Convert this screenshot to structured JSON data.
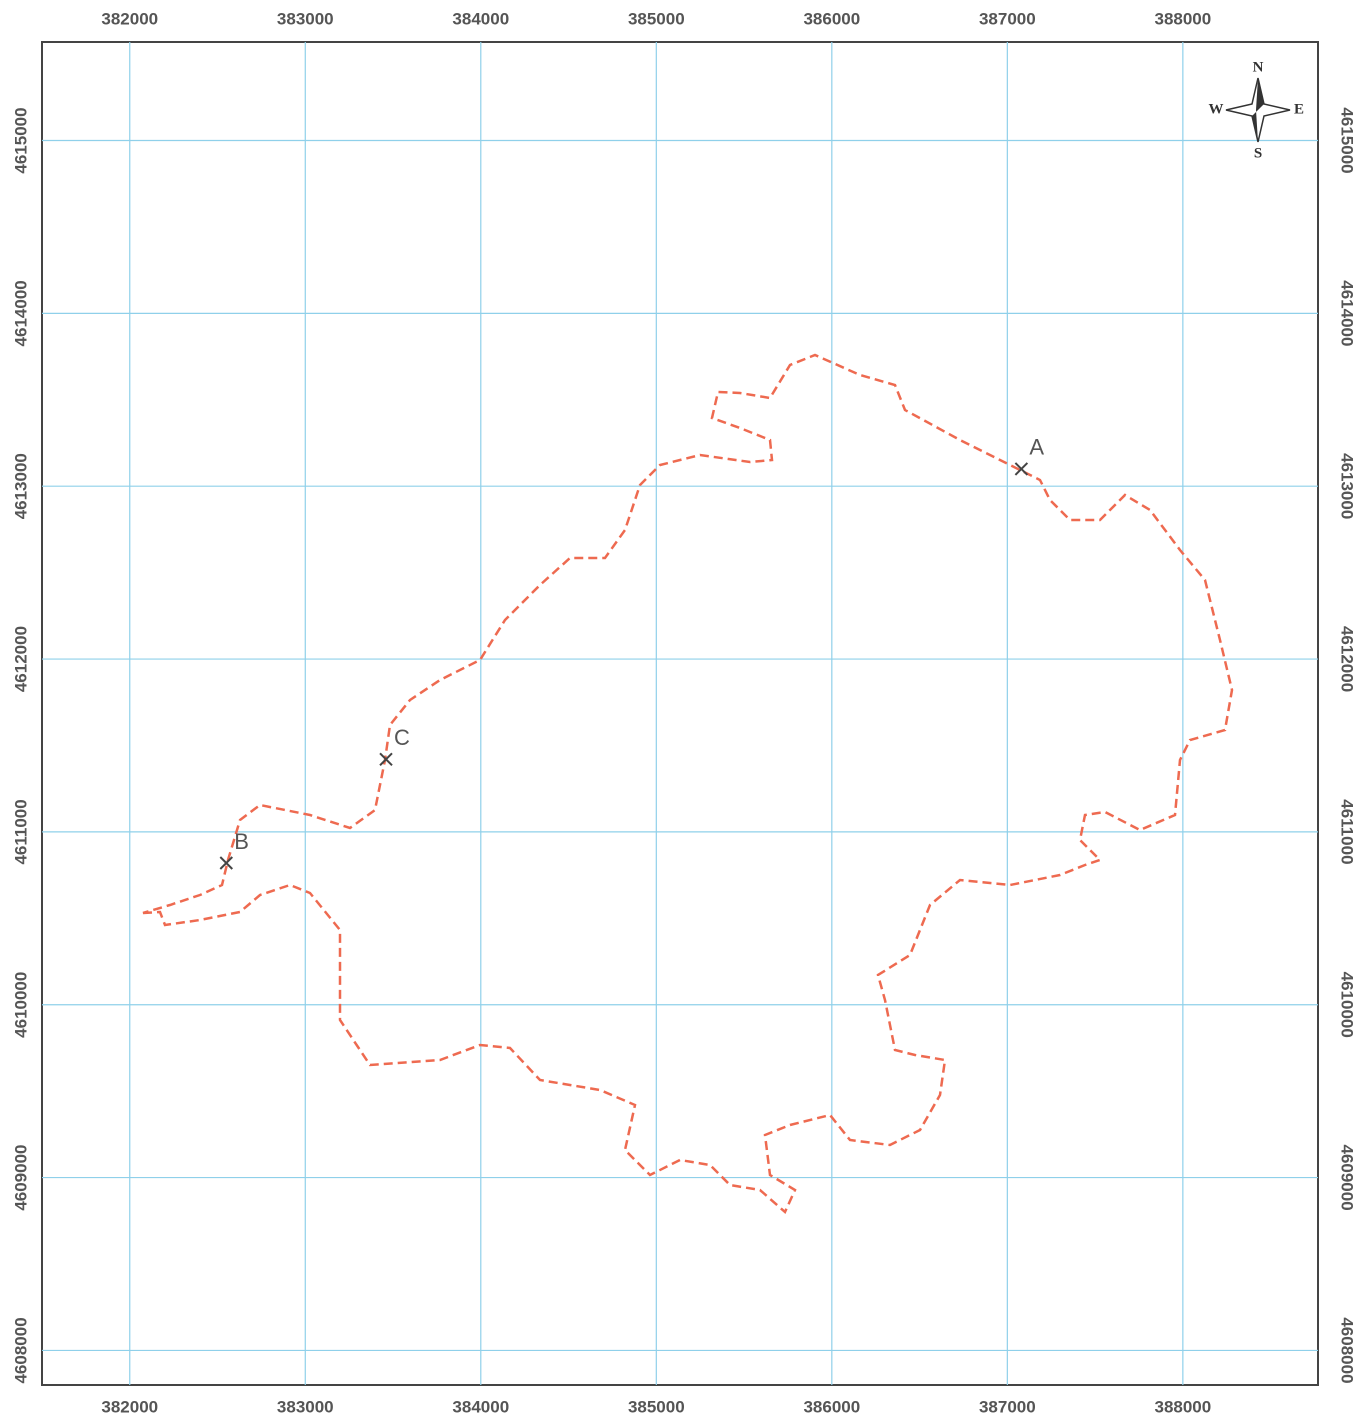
{
  "map": {
    "xlim": [
      381500,
      388770
    ],
    "ylim": [
      4607800,
      4615570
    ],
    "xticks": [
      382000,
      383000,
      384000,
      385000,
      386000,
      387000,
      388000
    ],
    "yticks": [
      4608000,
      4609000,
      4610000,
      4611000,
      4612000,
      4613000,
      4614000,
      4615000
    ],
    "points": [
      {
        "label": "A",
        "x": 387080,
        "y": 4613100
      },
      {
        "label": "B",
        "x": 382550,
        "y": 4610820
      },
      {
        "label": "C",
        "x": 383460,
        "y": 4611420
      }
    ],
    "compass": {
      "n": "N",
      "s": "S",
      "e": "E",
      "w": "W"
    }
  }
}
